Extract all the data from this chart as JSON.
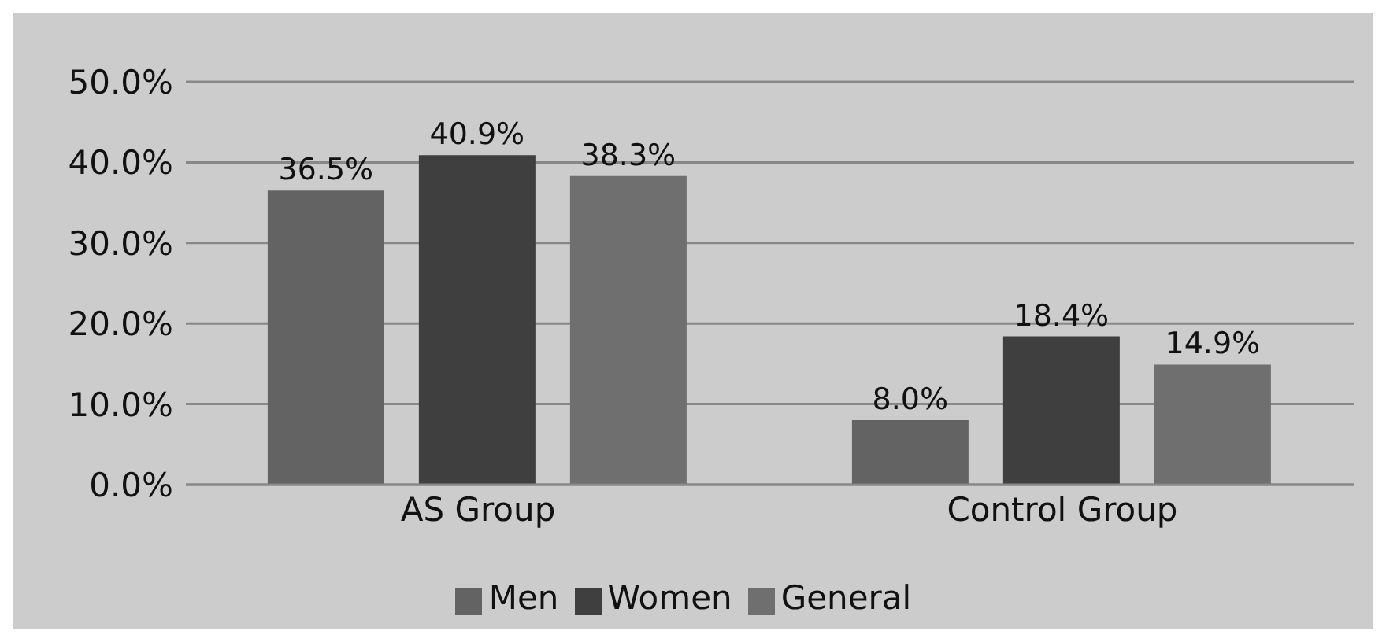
{
  "chart_data": {
    "type": "bar",
    "categories": [
      "AS Group",
      "Control Group"
    ],
    "series": [
      {
        "name": "Men",
        "color": "#636363",
        "values": [
          36.5,
          8.0
        ],
        "value_labels": [
          "36.5%",
          "8.0%"
        ]
      },
      {
        "name": "Women",
        "color": "#3f3f3f",
        "values": [
          40.9,
          18.4
        ],
        "value_labels": [
          "40.9%",
          "18.4%"
        ]
      },
      {
        "name": "General",
        "color": "#6f6f6f",
        "values": [
          38.3,
          14.9
        ],
        "value_labels": [
          "38.3%",
          "14.9%"
        ]
      }
    ],
    "ylim": [
      0,
      50
    ],
    "yticks": [
      {
        "value": 0,
        "label": "0.0%"
      },
      {
        "value": 10,
        "label": "10.0%"
      },
      {
        "value": 20,
        "label": "20.0%"
      },
      {
        "value": 30,
        "label": "30.0%"
      },
      {
        "value": 40,
        "label": "40.0%"
      },
      {
        "value": 50,
        "label": "50.0%"
      }
    ],
    "grid": "y",
    "legend": "bottom"
  }
}
